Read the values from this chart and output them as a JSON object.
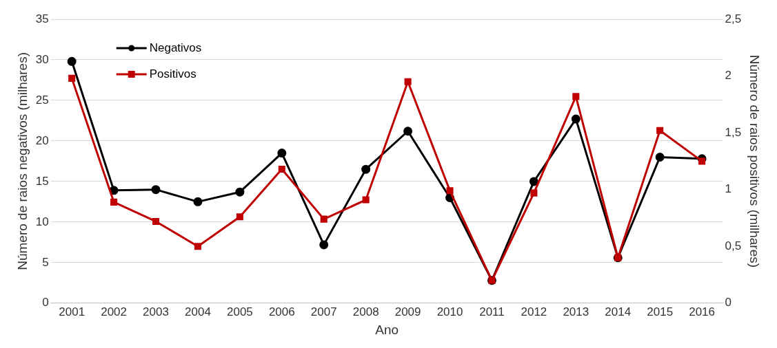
{
  "chart_data": {
    "type": "line",
    "xlabel": "Ano",
    "ylabel": "Número de raios negativos (milhares)",
    "y2label": "Número de raios positivos (milhares)",
    "categories": [
      "2001",
      "2002",
      "2003",
      "2004",
      "2005",
      "2006",
      "2007",
      "2008",
      "2009",
      "2010",
      "2011",
      "2012",
      "2013",
      "2014",
      "2015",
      "2016"
    ],
    "series": [
      {
        "name": "Negativos",
        "color": "#000000",
        "marker": "circle",
        "values": [
          29.8,
          13.9,
          14.0,
          12.5,
          13.7,
          18.5,
          7.2,
          16.5,
          21.2,
          13.0,
          2.8,
          15.0,
          22.7,
          5.6,
          18.0,
          17.8
        ]
      },
      {
        "name": "Positivos",
        "color": "#c00000",
        "marker": "square",
        "axis": "y2",
        "values": [
          1.98,
          0.89,
          0.72,
          0.5,
          0.76,
          1.18,
          0.74,
          0.91,
          1.95,
          0.99,
          0.2,
          0.97,
          1.82,
          0.4,
          1.52,
          1.25
        ]
      }
    ],
    "ylim": [
      0,
      35
    ],
    "yticks": [
      0,
      5,
      10,
      15,
      20,
      25,
      30,
      35
    ],
    "y2lim": [
      0,
      2.5
    ],
    "y2ticks": [
      0,
      {
        "value": 0.5,
        "label": "0,5"
      },
      1,
      {
        "value": 1.5,
        "label": "1,5"
      },
      2,
      {
        "value": 2.5,
        "label": "2,5"
      }
    ],
    "grid": "y",
    "legend": "top left"
  }
}
